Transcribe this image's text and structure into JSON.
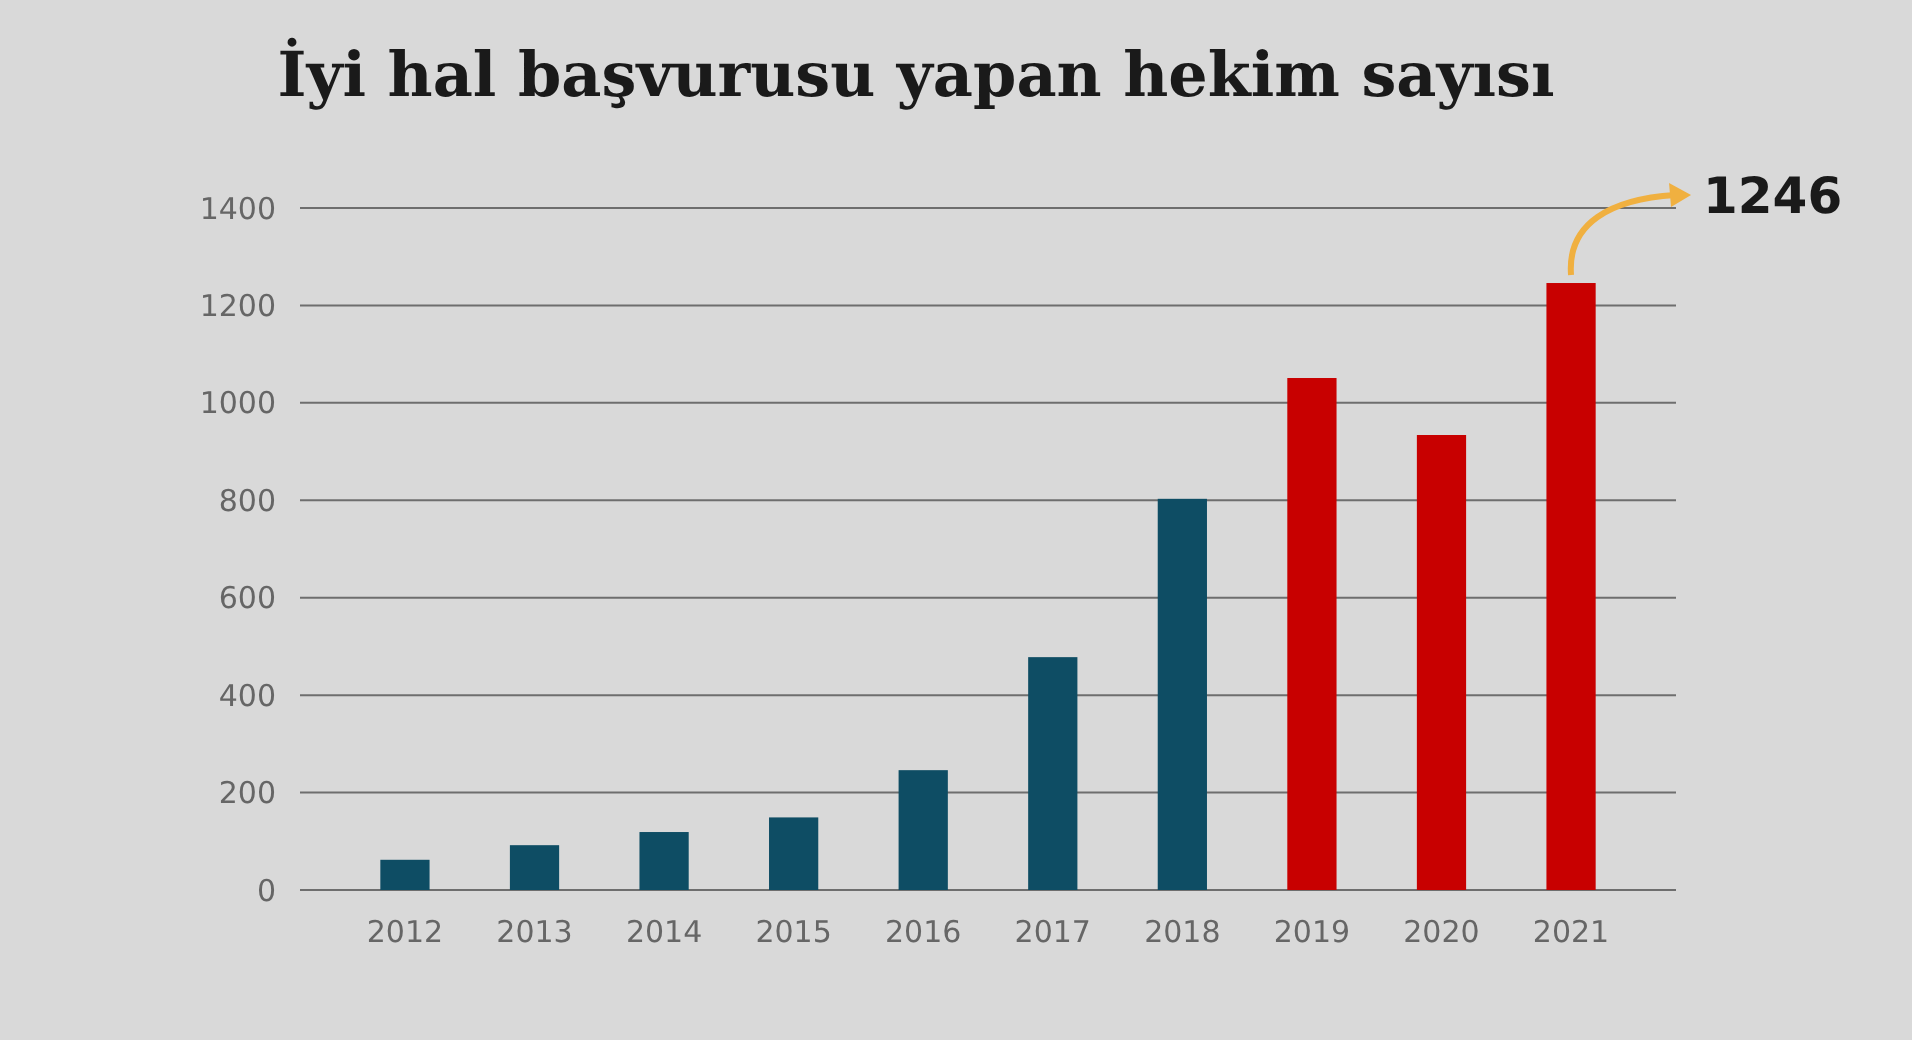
{
  "chart_data": {
    "type": "bar",
    "title": "İyi hal başvurusu yapan hekim sayısı",
    "categories": [
      "2012",
      "2013",
      "2014",
      "2015",
      "2016",
      "2017",
      "2018",
      "2019",
      "2020",
      "2021"
    ],
    "values": [
      62,
      92,
      119,
      149,
      246,
      478,
      803,
      1051,
      934,
      1246
    ],
    "colors": [
      "#0e4d64",
      "#0e4d64",
      "#0e4d64",
      "#0e4d64",
      "#0e4d64",
      "#0e4d64",
      "#0e4d64",
      "#c80000",
      "#c80000",
      "#c80000"
    ],
    "ylim": [
      0,
      1400
    ],
    "yticks": [
      0,
      200,
      400,
      600,
      800,
      1000,
      1200,
      1400
    ],
    "grid": "y",
    "annotations": [
      {
        "text": "1246",
        "x": "2021",
        "y": 1246
      }
    ]
  }
}
